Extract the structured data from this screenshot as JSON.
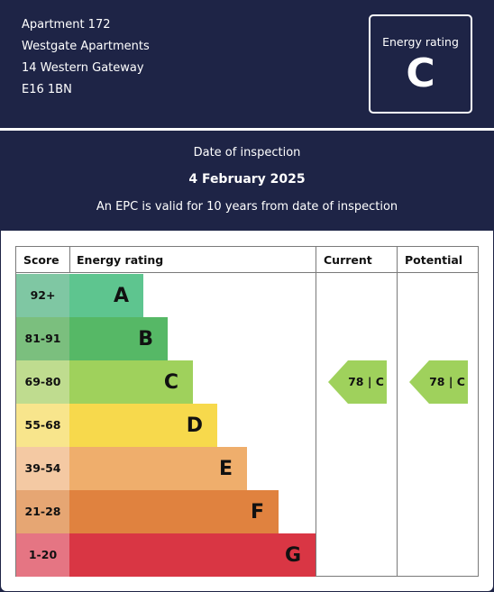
{
  "address": {
    "line1": "Apartment 172",
    "line2": "Westgate Apartments",
    "line3": "14 Western Gateway",
    "line4": "E16 1BN"
  },
  "rating_badge": {
    "label": "Energy rating",
    "value": "C"
  },
  "inspection": {
    "label": "Date of inspection",
    "date": "4 February 2025",
    "note": "An EPC is valid for 10 years from date of inspection"
  },
  "table": {
    "headers": {
      "score": "Score",
      "rating": "Energy rating",
      "current": "Current",
      "potential": "Potential"
    },
    "bands": [
      {
        "score": "92+",
        "letter": "A",
        "score_color": "#7fc7a3",
        "bar_color": "#5ec58f"
      },
      {
        "score": "81-91",
        "letter": "B",
        "score_color": "#7bbf7e",
        "bar_color": "#56b866"
      },
      {
        "score": "69-80",
        "letter": "C",
        "score_color": "#bfdc8f",
        "bar_color": "#9fd15c"
      },
      {
        "score": "55-68",
        "letter": "D",
        "score_color": "#f8e58c",
        "bar_color": "#f7d94c"
      },
      {
        "score": "39-54",
        "letter": "E",
        "score_color": "#f4c9a3",
        "bar_color": "#efae6c"
      },
      {
        "score": "21-28",
        "letter": "F",
        "score_color": "#e6a673",
        "bar_color": "#e0823f"
      },
      {
        "score": "1-20",
        "letter": "G",
        "score_color": "#e57583",
        "bar_color": "#d93644"
      }
    ],
    "current": {
      "text": "78 | C",
      "band": "C",
      "color": "#9fd15c"
    },
    "potential": {
      "text": "78 | C",
      "band": "C",
      "color": "#9fd15c"
    }
  }
}
